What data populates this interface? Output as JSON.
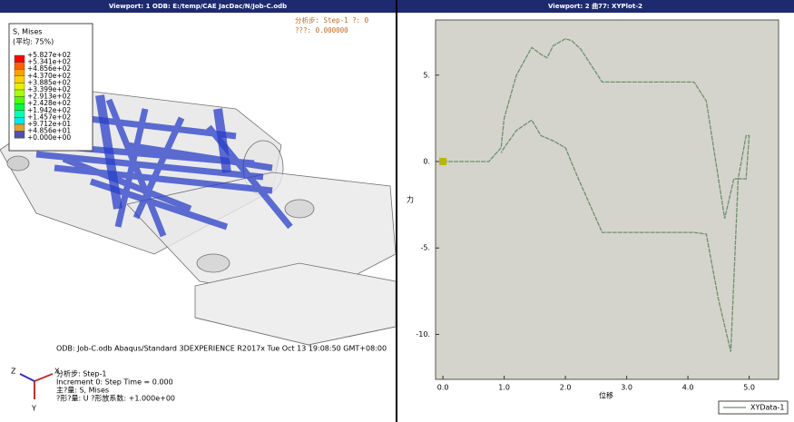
{
  "viewport1": {
    "title": "Viewport: 1     ODB: E:/temp/CAE JacDac/N/Job-C.odb",
    "legend_title": "S, Mises",
    "legend_subtitle": "(平均: 75%)",
    "legend_labels": [
      "+5.827e+02",
      "+5.341e+02",
      "+4.856e+02",
      "+4.370e+02",
      "+3.885e+02",
      "+3.399e+02",
      "+2.913e+02",
      "+2.428e+02",
      "+1.942e+02",
      "+1.457e+02",
      "+9.712e+01",
      "+4.856e+01",
      "+0.000e+00"
    ],
    "legend_colors": [
      "#ff0000",
      "#ff6000",
      "#ffa000",
      "#ffd000",
      "#e8f000",
      "#a8ff00",
      "#50ff00",
      "#00ff40",
      "#00ffb0",
      "#00e8f0",
      "#e0a030",
      "#5050b0"
    ],
    "step_label": "分析步: Step-1    ?: 0",
    "step_value": "???: 0.000000",
    "odb_line": "ODB: Job-C.odb     Abaqus/Standard 3DEXPERIENCE R2017x     Tue Oct 13 19:08:50 GMT+08:00",
    "info_lines": [
      "分析步: Step-1",
      "Increment     0: Step Time =     0.000",
      "主?量: S, Mises",
      "?形?量: U   ?形放系数: +1.000e+00"
    ],
    "axes": [
      "X",
      "Y",
      "Z"
    ]
  },
  "viewport2": {
    "title": "Viewport: 2     曲77: XYPlot-2"
  },
  "chart_data": {
    "type": "line",
    "x_label": "位移",
    "y_label": "力",
    "x": [
      0.0,
      0.75,
      0.95,
      1.0,
      1.2,
      1.45,
      1.6,
      1.7,
      1.8,
      2.0,
      2.1,
      2.25,
      2.6,
      4.1,
      4.3,
      4.6,
      4.75,
      4.82,
      4.95,
      5.0,
      4.95,
      4.82,
      4.7,
      4.5,
      4.3,
      4.1,
      2.6,
      2.2,
      2.0,
      1.8,
      1.6,
      1.45,
      1.2,
      1.0,
      0.95
    ],
    "series": [
      {
        "name": "XYData-1",
        "color": "#6f8f6f",
        "values": [
          0,
          0,
          0.8,
          2.5,
          5.0,
          6.6,
          6.2,
          6.0,
          6.7,
          7.1,
          7.0,
          6.5,
          4.6,
          4.6,
          3.5,
          -3.3,
          -1.0,
          -1.0,
          1.5,
          1.5,
          -1.0,
          -1.0,
          -11.0,
          -8.0,
          -4.2,
          -4.1,
          -4.1,
          -0.9,
          0.8,
          1.2,
          1.5,
          2.4,
          1.8,
          0.8,
          0.5
        ]
      }
    ],
    "xlim": [
      -0.12,
      5.48
    ],
    "ylim": [
      -12.6,
      8.19
    ],
    "xticks": [
      {
        "value": 0,
        "label": "0.0"
      },
      {
        "value": 1,
        "label": "1.0"
      },
      {
        "value": 2,
        "label": "2.0"
      },
      {
        "value": 3,
        "label": "3.0"
      },
      {
        "value": 4,
        "label": "4.0"
      },
      {
        "value": 5,
        "label": "5.0"
      }
    ],
    "yticks": [
      {
        "value": 5,
        "label": "5."
      },
      {
        "value": 0,
        "label": "0."
      },
      {
        "value": -5,
        "label": "-5."
      },
      {
        "value": -10,
        "label": "-10."
      }
    ]
  }
}
